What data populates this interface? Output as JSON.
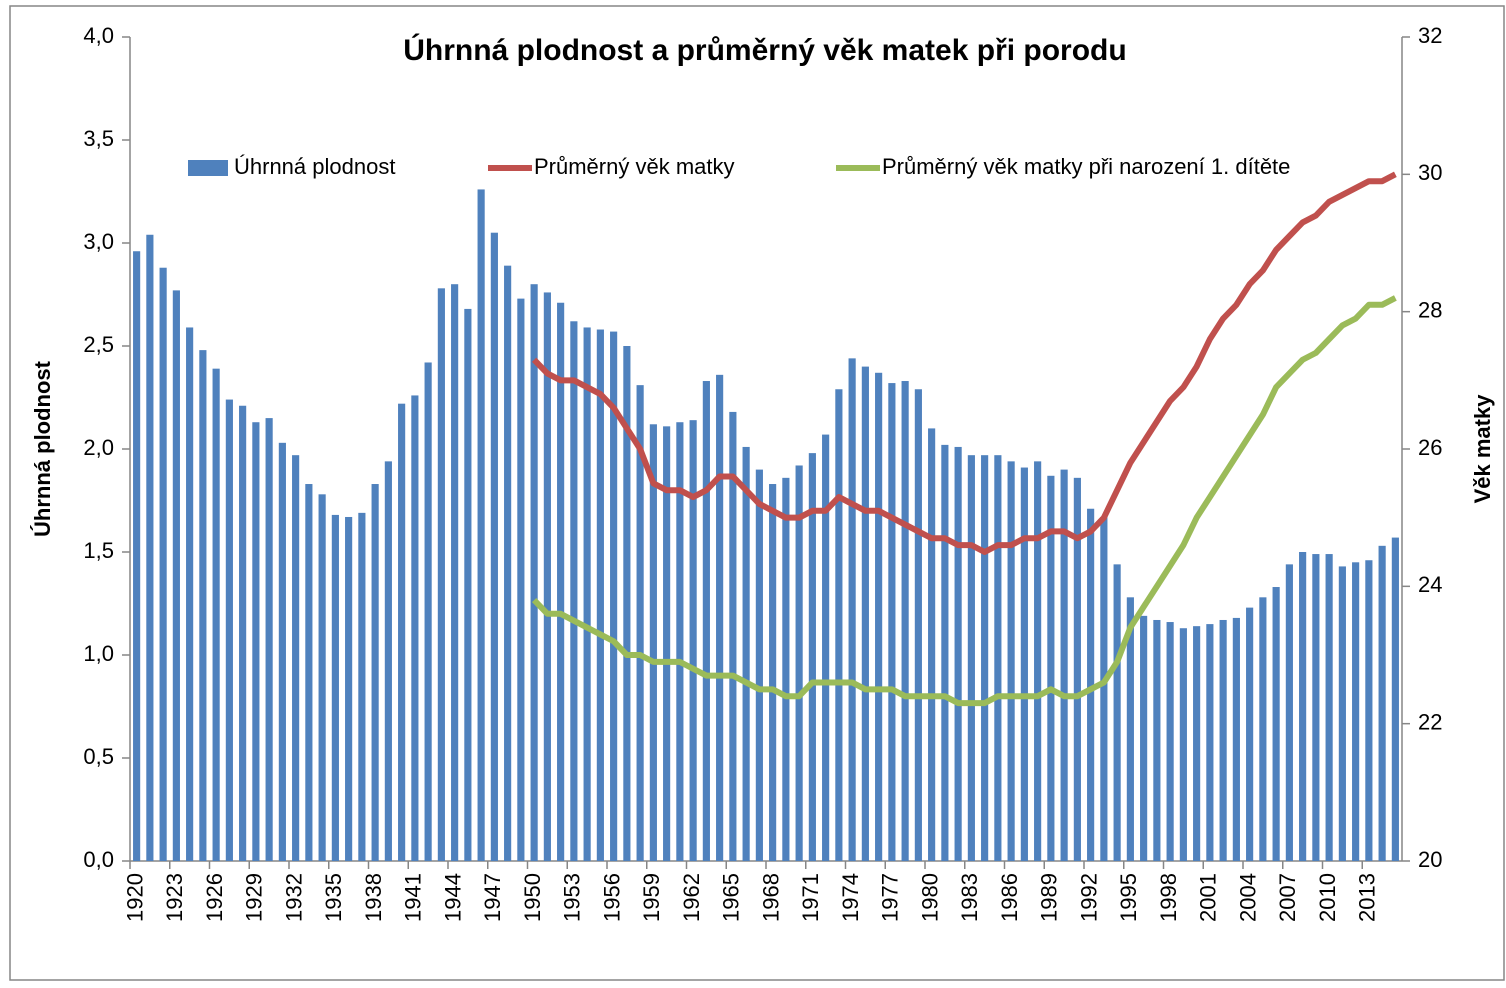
{
  "chart_data": {
    "type": "bar",
    "title": "Úhrnná plodnost a průměrný věk matek při porodu",
    "ylabel": "Úhrnná plodnost",
    "y2label": "Věk matky",
    "categories": [
      "1920",
      null,
      null,
      "1923",
      null,
      null,
      "1926",
      null,
      null,
      "1929",
      null,
      null,
      "1932",
      null,
      null,
      "1935",
      null,
      null,
      "1938",
      null,
      null,
      "1941",
      null,
      null,
      "1944",
      null,
      null,
      "1947",
      null,
      null,
      "1950",
      null,
      null,
      "1953",
      null,
      null,
      "1956",
      null,
      null,
      "1959",
      null,
      null,
      "1962",
      null,
      null,
      "1965",
      null,
      null,
      "1968",
      null,
      null,
      "1971",
      null,
      null,
      "1974",
      null,
      null,
      "1977",
      null,
      null,
      "1980",
      null,
      null,
      "1983",
      null,
      null,
      "1986",
      null,
      null,
      "1989",
      null,
      null,
      "1992",
      null,
      null,
      "1995",
      null,
      null,
      "1998",
      null,
      null,
      "2001",
      null,
      null,
      "2004",
      null,
      null,
      "2007",
      null,
      null,
      "2010",
      null,
      null,
      "2013",
      null,
      null
    ],
    "series": [
      {
        "name": "Úhrnná plodnost",
        "type": "bar",
        "color": "#4f81bd",
        "values": [
          2.96,
          3.04,
          2.88,
          2.77,
          2.59,
          2.48,
          2.39,
          2.24,
          2.21,
          2.13,
          2.15,
          2.03,
          1.97,
          1.83,
          1.78,
          1.68,
          1.67,
          1.69,
          1.83,
          1.94,
          2.22,
          2.26,
          2.42,
          2.78,
          2.8,
          2.68,
          3.26,
          3.05,
          2.89,
          2.73,
          2.8,
          2.76,
          2.71,
          2.62,
          2.59,
          2.58,
          2.57,
          2.5,
          2.31,
          2.12,
          2.11,
          2.13,
          2.14,
          2.33,
          2.36,
          2.18,
          2.01,
          1.9,
          1.83,
          1.86,
          1.92,
          1.98,
          2.07,
          2.29,
          2.44,
          2.4,
          2.37,
          2.32,
          2.33,
          2.29,
          2.1,
          2.02,
          2.01,
          1.97,
          1.97,
          1.97,
          1.94,
          1.91,
          1.94,
          1.87,
          1.9,
          1.86,
          1.71,
          1.67,
          1.44,
          1.28,
          1.19,
          1.17,
          1.16,
          1.13,
          1.14,
          1.15,
          1.17,
          1.18,
          1.23,
          1.28,
          1.33,
          1.44,
          1.5,
          1.49,
          1.49,
          1.43,
          1.45,
          1.46,
          1.53,
          1.57
        ]
      },
      {
        "name": "Průměrný věk matky",
        "type": "line",
        "axis": "y2",
        "color": "#c0504d",
        "values": [
          null,
          null,
          null,
          null,
          null,
          null,
          null,
          null,
          null,
          null,
          null,
          null,
          null,
          null,
          null,
          null,
          null,
          null,
          null,
          null,
          null,
          null,
          null,
          null,
          null,
          null,
          null,
          null,
          null,
          null,
          27.3,
          27.1,
          27.0,
          27.0,
          26.9,
          26.8,
          26.6,
          26.3,
          26.0,
          25.5,
          25.4,
          25.4,
          25.3,
          25.4,
          25.6,
          25.6,
          25.4,
          25.2,
          25.1,
          25.0,
          25.0,
          25.1,
          25.1,
          25.3,
          25.2,
          25.1,
          25.1,
          25.0,
          24.9,
          24.8,
          24.7,
          24.7,
          24.6,
          24.6,
          24.5,
          24.6,
          24.6,
          24.7,
          24.7,
          24.8,
          24.8,
          24.7,
          24.8,
          25.0,
          25.4,
          25.8,
          26.1,
          26.4,
          26.7,
          26.9,
          27.2,
          27.6,
          27.9,
          28.1,
          28.4,
          28.6,
          28.9,
          29.1,
          29.3,
          29.4,
          29.6,
          29.7,
          29.8,
          29.9,
          29.9,
          30.0
        ]
      },
      {
        "name": "Průměrný věk matky při narození 1. dítěte",
        "type": "line",
        "axis": "y2",
        "color": "#9bbb59",
        "values": [
          null,
          null,
          null,
          null,
          null,
          null,
          null,
          null,
          null,
          null,
          null,
          null,
          null,
          null,
          null,
          null,
          null,
          null,
          null,
          null,
          null,
          null,
          null,
          null,
          null,
          null,
          null,
          null,
          null,
          null,
          23.8,
          23.6,
          23.6,
          23.5,
          23.4,
          23.3,
          23.2,
          23.0,
          23.0,
          22.9,
          22.9,
          22.9,
          22.8,
          22.7,
          22.7,
          22.7,
          22.6,
          22.5,
          22.5,
          22.4,
          22.4,
          22.6,
          22.6,
          22.6,
          22.6,
          22.5,
          22.5,
          22.5,
          22.4,
          22.4,
          22.4,
          22.4,
          22.3,
          22.3,
          22.3,
          22.4,
          22.4,
          22.4,
          22.4,
          22.5,
          22.4,
          22.4,
          22.5,
          22.6,
          22.9,
          23.4,
          23.7,
          24.0,
          24.3,
          24.6,
          25.0,
          25.3,
          25.6,
          25.9,
          26.2,
          26.5,
          26.9,
          27.1,
          27.3,
          27.4,
          27.6,
          27.8,
          27.9,
          28.1,
          28.1,
          28.2
        ]
      }
    ],
    "ylim": [
      0,
      4
    ],
    "yticks": [
      {
        "value": 0,
        "label": "0,0"
      },
      {
        "value": 0.5,
        "label": "0,5"
      },
      {
        "value": 1,
        "label": "1,0"
      },
      {
        "value": 1.5,
        "label": "1,5"
      },
      {
        "value": 2,
        "label": "2,0"
      },
      {
        "value": 2.5,
        "label": "2,5"
      },
      {
        "value": 3,
        "label": "3,0"
      },
      {
        "value": 3.5,
        "label": "3,5"
      },
      {
        "value": 4,
        "label": "4,0"
      }
    ],
    "y2lim": [
      20,
      32
    ],
    "y2ticks": [
      20,
      22,
      24,
      26,
      28,
      30,
      32
    ],
    "legend": "top",
    "grid": false
  }
}
